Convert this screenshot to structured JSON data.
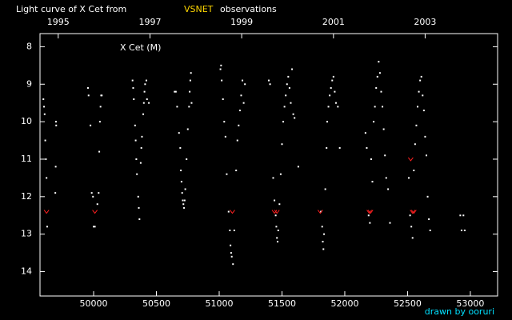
{
  "chart_data": {
    "type": "scatter",
    "title": "Light curve of X Cet from",
    "source": "VSNET",
    "title_suffix": "observations",
    "annotation": "X Cet (M)",
    "credit": "drawn by ooruri",
    "xlim": [
      49573,
      53217
    ],
    "ylim": [
      7.65,
      14.65
    ],
    "y_inverted": true,
    "xticks": [
      50000,
      50500,
      51000,
      51500,
      52000,
      52500,
      53000
    ],
    "x2ticks": [
      {
        "value": 49718,
        "label": "1995"
      },
      {
        "value": 50449,
        "label": "1997"
      },
      {
        "value": 51179,
        "label": "1999"
      },
      {
        "value": 51910,
        "label": "2001"
      },
      {
        "value": 52640,
        "label": "2003"
      }
    ],
    "yticks": [
      8,
      9,
      10,
      11,
      12,
      13,
      14
    ],
    "series": [
      {
        "color": "#ffffff",
        "marker": "dot",
        "x": [
          49600,
          49605,
          49610,
          49615,
          49620,
          49625,
          49630,
          49700,
          49702,
          49698,
          49695,
          49955,
          49960,
          49975,
          49985,
          49995,
          50000,
          50010,
          50030,
          50040,
          50045,
          50050,
          50055,
          50060,
          50065,
          50310,
          50315,
          50320,
          50330,
          50335,
          50340,
          50345,
          50355,
          50360,
          50365,
          50375,
          50380,
          50385,
          50395,
          50400,
          50405,
          50410,
          50420,
          50425,
          50440,
          50645,
          50655,
          50665,
          50680,
          50690,
          50695,
          50700,
          50705,
          50710,
          50715,
          50720,
          50725,
          50730,
          50740,
          50750,
          50760,
          50765,
          50770,
          50775,
          50780,
          51010,
          51015,
          51020,
          51030,
          51040,
          51050,
          51060,
          51075,
          51085,
          51090,
          51095,
          51100,
          51110,
          51120,
          51135,
          51145,
          51155,
          51165,
          51175,
          51185,
          51195,
          51205,
          51395,
          51405,
          51430,
          51440,
          51450,
          51455,
          51460,
          51465,
          51470,
          51480,
          51490,
          51500,
          51510,
          51520,
          51530,
          51540,
          51550,
          51560,
          51570,
          51580,
          51590,
          51600,
          51630,
          51810,
          51820,
          51825,
          51830,
          51835,
          51845,
          51855,
          51860,
          51870,
          51880,
          51890,
          51900,
          51910,
          51920,
          51930,
          51945,
          51960,
          52165,
          52175,
          52190,
          52200,
          52210,
          52220,
          52230,
          52240,
          52250,
          52260,
          52270,
          52280,
          52290,
          52300,
          52310,
          52320,
          52330,
          52345,
          52360,
          52510,
          52520,
          52530,
          52540,
          52550,
          52560,
          52570,
          52580,
          52590,
          52600,
          52610,
          52620,
          52630,
          52640,
          52650,
          52660,
          52670,
          52680,
          52920,
          52930,
          52945,
          52955
        ],
        "values": [
          9.4,
          9.6,
          9.8,
          10.5,
          11.0,
          11.5,
          12.8,
          10.0,
          10.1,
          11.2,
          11.9,
          9.1,
          9.3,
          10.1,
          11.9,
          12.0,
          12.8,
          12.8,
          12.2,
          11.9,
          10.8,
          10.0,
          9.6,
          9.3,
          9.3,
          8.9,
          9.1,
          9.4,
          10.1,
          10.5,
          11.0,
          11.4,
          12.0,
          12.3,
          12.6,
          11.1,
          10.7,
          10.4,
          9.8,
          9.5,
          9.2,
          9.0,
          8.9,
          9.4,
          9.5,
          9.2,
          9.2,
          9.6,
          10.3,
          10.7,
          11.3,
          11.6,
          11.9,
          12.1,
          12.2,
          12.3,
          12.1,
          11.8,
          11.0,
          10.2,
          9.6,
          9.2,
          8.9,
          8.7,
          9.5,
          8.6,
          8.5,
          8.9,
          9.4,
          10.0,
          10.4,
          11.4,
          12.4,
          12.9,
          13.3,
          13.5,
          13.6,
          13.8,
          12.9,
          11.3,
          10.5,
          10.1,
          9.7,
          9.3,
          8.9,
          9.5,
          9.0,
          8.9,
          9.0,
          11.5,
          12.1,
          12.5,
          12.8,
          13.1,
          13.2,
          12.9,
          12.2,
          11.4,
          10.6,
          10.0,
          9.6,
          9.3,
          9.0,
          8.8,
          9.1,
          9.5,
          8.6,
          9.8,
          9.9,
          11.2,
          12.4,
          12.8,
          13.2,
          13.4,
          13.0,
          11.8,
          10.7,
          10.0,
          9.6,
          9.3,
          9.1,
          8.9,
          8.8,
          9.2,
          9.5,
          9.6,
          10.7,
          10.3,
          10.7,
          12.5,
          12.7,
          11.0,
          11.6,
          10.0,
          9.6,
          9.1,
          8.8,
          8.4,
          8.7,
          9.2,
          9.6,
          10.2,
          10.9,
          11.5,
          11.8,
          12.7,
          11.5,
          12.5,
          12.8,
          13.1,
          11.3,
          10.6,
          10.1,
          9.6,
          9.2,
          8.9,
          8.8,
          9.3,
          9.7,
          10.4,
          10.9,
          12.0,
          12.6,
          12.9,
          12.5,
          12.9,
          12.5,
          12.9
        ]
      },
      {
        "color": "#ff2020",
        "marker": "v",
        "x": [
          49625,
          50010,
          51105,
          51440,
          51460,
          51805,
          52195,
          52205,
          52525,
          52540,
          52550
        ],
        "values": [
          12.4,
          12.4,
          12.4,
          12.4,
          12.4,
          12.4,
          12.4,
          12.4,
          11.0,
          12.4,
          12.4
        ]
      }
    ]
  }
}
